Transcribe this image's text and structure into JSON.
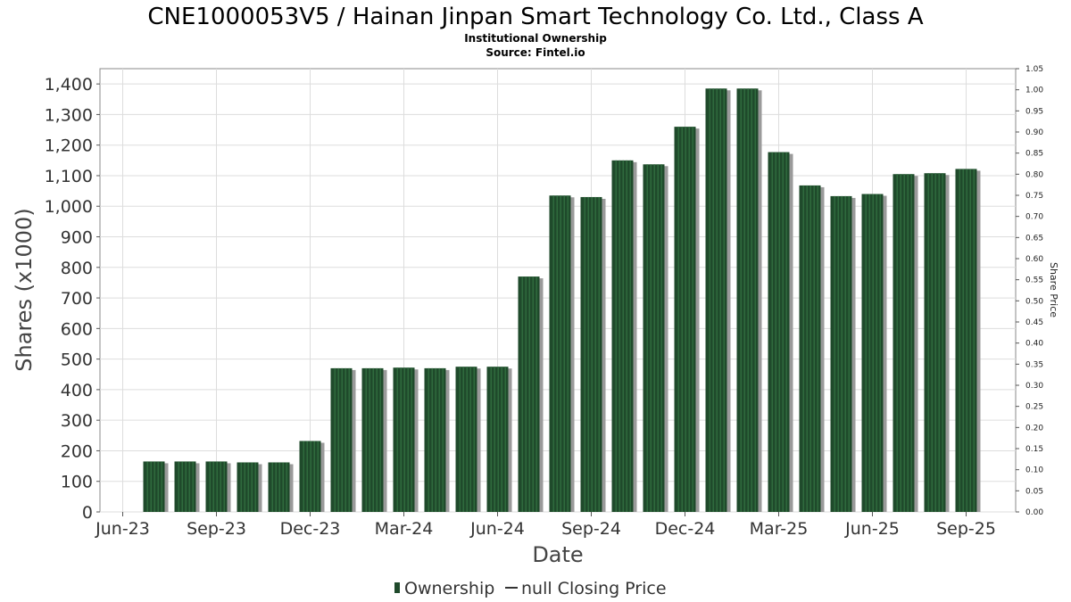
{
  "header": {
    "title": "CNE1000053V5 / Hainan Jinpan Smart Technology Co. Ltd., Class A",
    "subtitle": "Institutional Ownership",
    "source": "Source: Fintel.io"
  },
  "legend": {
    "ownership_label": "Ownership",
    "price_label": "null Closing Price"
  },
  "colors": {
    "bar": "#1f4a2b",
    "bar_stripe": "#2f6a3d",
    "shadow": "#9a9a9a",
    "grid": "#dddddd"
  },
  "chart_data": {
    "type": "bar",
    "title": "CNE1000053V5 / Hainan Jinpan Smart Technology Co. Ltd., Class A",
    "xlabel": "Date",
    "ylabel": "Shares (x1000)",
    "y2label": "Share Price",
    "ylim": [
      0,
      1450
    ],
    "y2lim": [
      0,
      1.05
    ],
    "grid": true,
    "legend_position": "bottom",
    "x_tick_labels": [
      "Jun-23",
      "Sep-23",
      "Dec-23",
      "Mar-24",
      "Jun-24",
      "Sep-24",
      "Dec-24",
      "Mar-25",
      "Jun-25",
      "Sep-25"
    ],
    "y_ticks": [
      0,
      100,
      200,
      300,
      400,
      500,
      600,
      700,
      800,
      900,
      1000,
      1100,
      1200,
      1300,
      1400
    ],
    "y_tick_labels": [
      "0",
      "100",
      "200",
      "300",
      "400",
      "500",
      "600",
      "700",
      "800",
      "900",
      "1,000",
      "1,100",
      "1,200",
      "1,300",
      "1,400"
    ],
    "y2_tick_labels": [
      "0.00",
      "0.05",
      "0.10",
      "0.15",
      "0.20",
      "0.25",
      "0.30",
      "0.35",
      "0.40",
      "0.45",
      "0.50",
      "0.55",
      "0.60",
      "0.65",
      "0.70",
      "0.75",
      "0.80",
      "0.85",
      "0.90",
      "0.95",
      "1.00",
      "1.05"
    ],
    "series": [
      {
        "name": "Ownership",
        "values": [
          165,
          165,
          165,
          162,
          162,
          232,
          470,
          470,
          472,
          470,
          475,
          475,
          770,
          1035,
          1030,
          1150,
          1137,
          1260,
          1385,
          1385,
          1177,
          1068,
          1033,
          1040,
          1105,
          1108,
          1122
        ]
      }
    ]
  }
}
